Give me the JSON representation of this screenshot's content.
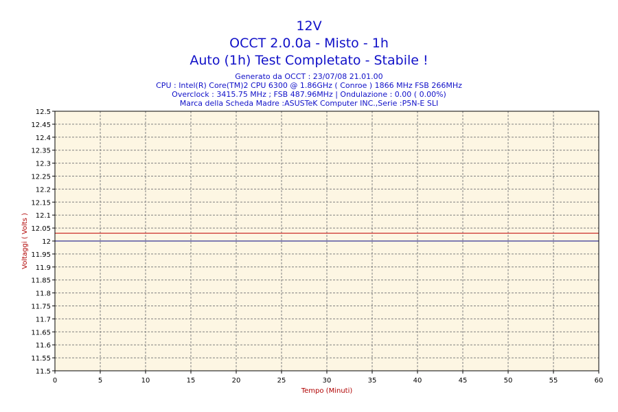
{
  "header": {
    "title": "12V",
    "subtitle1": "OCCT 2.0.0a - Misto - 1h",
    "subtitle2": "Auto (1h) Test Completato - Stabile !",
    "info_lines": [
      "Generato da OCCT : 23/07/08 21.01.00",
      "CPU : Intel(R) Core(TM)2 CPU 6300 @ 1.86GHz ( Conroe ) 1866 MHz FSB 266MHz",
      "Overclock : 3415.75 MHz ; FSB 487.96MHz | Ondulazione : 0.00 ( 0.00%)",
      "Marca della Scheda Madre :ASUSTeK Computer INC.,Serie :P5N-E SLI"
    ]
  },
  "colors": {
    "title": "#1010c8",
    "axis_title": "#b00000",
    "plot_background": "#fdf6e3",
    "grid": "#808080",
    "series_main": "#000080",
    "series_ref": "#c00000"
  },
  "chart_data": {
    "type": "line",
    "xlabel": "Tempo (Minuti)",
    "ylabel": "Voltaggi ( Volts )",
    "xlim": [
      0,
      60
    ],
    "ylim": [
      11.5,
      12.5
    ],
    "x_ticks": [
      "0",
      "5",
      "10",
      "15",
      "20",
      "25",
      "30",
      "35",
      "40",
      "45",
      "50",
      "55",
      "60"
    ],
    "y_ticks": [
      "11.5",
      "11.55",
      "11.6",
      "11.65",
      "11.7",
      "11.75",
      "11.8",
      "11.85",
      "11.9",
      "11.95",
      "12",
      "12.05",
      "12.1",
      "12.15",
      "12.2",
      "12.25",
      "12.3",
      "12.35",
      "12.4",
      "12.45",
      "12.5"
    ],
    "grid": true,
    "series": [
      {
        "x": [
          0,
          60
        ],
        "values": [
          12.0,
          12.0
        ]
      },
      {
        "x": [
          0,
          60
        ],
        "values": [
          12.03,
          12.03
        ]
      }
    ]
  }
}
